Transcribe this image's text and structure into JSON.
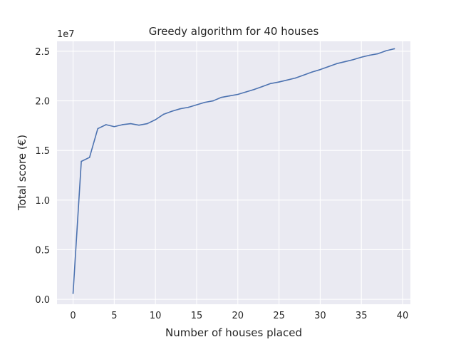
{
  "chart_data": {
    "type": "line",
    "title": "Greedy algorithm for 40 houses",
    "xlabel": "Number of houses placed",
    "ylabel": "Total score (€)",
    "y_offset_label": "1e7",
    "xlim": [
      -1.95,
      40.95
    ],
    "ylim": [
      -0.05,
      2.6
    ],
    "y_scale_note": "values in units of 1e7",
    "x_ticks": [
      0,
      5,
      10,
      15,
      20,
      25,
      30,
      35,
      40
    ],
    "x_tick_labels": [
      "0",
      "5",
      "10",
      "15",
      "20",
      "25",
      "30",
      "35",
      "40"
    ],
    "y_ticks": [
      0.0,
      0.5,
      1.0,
      1.5,
      2.0,
      2.5
    ],
    "y_tick_labels": [
      "0.0",
      "0.5",
      "1.0",
      "1.5",
      "2.0",
      "2.5"
    ],
    "grid": true,
    "legend": "none",
    "series": [
      {
        "color": "#4c72b0",
        "x": [
          0,
          1,
          2,
          3,
          4,
          5,
          6,
          7,
          8,
          9,
          10,
          11,
          12,
          13,
          14,
          15,
          16,
          17,
          18,
          19,
          20,
          21,
          22,
          23,
          24,
          25,
          26,
          27,
          28,
          29,
          30,
          31,
          32,
          33,
          34,
          35,
          36,
          37,
          38,
          39
        ],
        "values": [
          0.06,
          1.39,
          1.43,
          1.72,
          1.76,
          1.74,
          1.76,
          1.77,
          1.755,
          1.77,
          1.81,
          1.865,
          1.895,
          1.92,
          1.935,
          1.96,
          1.985,
          2.0,
          2.035,
          2.05,
          2.065,
          2.09,
          2.115,
          2.145,
          2.175,
          2.19,
          2.21,
          2.23,
          2.26,
          2.29,
          2.315,
          2.345,
          2.375,
          2.395,
          2.415,
          2.44,
          2.46,
          2.475,
          2.505,
          2.525
        ]
      }
    ]
  }
}
